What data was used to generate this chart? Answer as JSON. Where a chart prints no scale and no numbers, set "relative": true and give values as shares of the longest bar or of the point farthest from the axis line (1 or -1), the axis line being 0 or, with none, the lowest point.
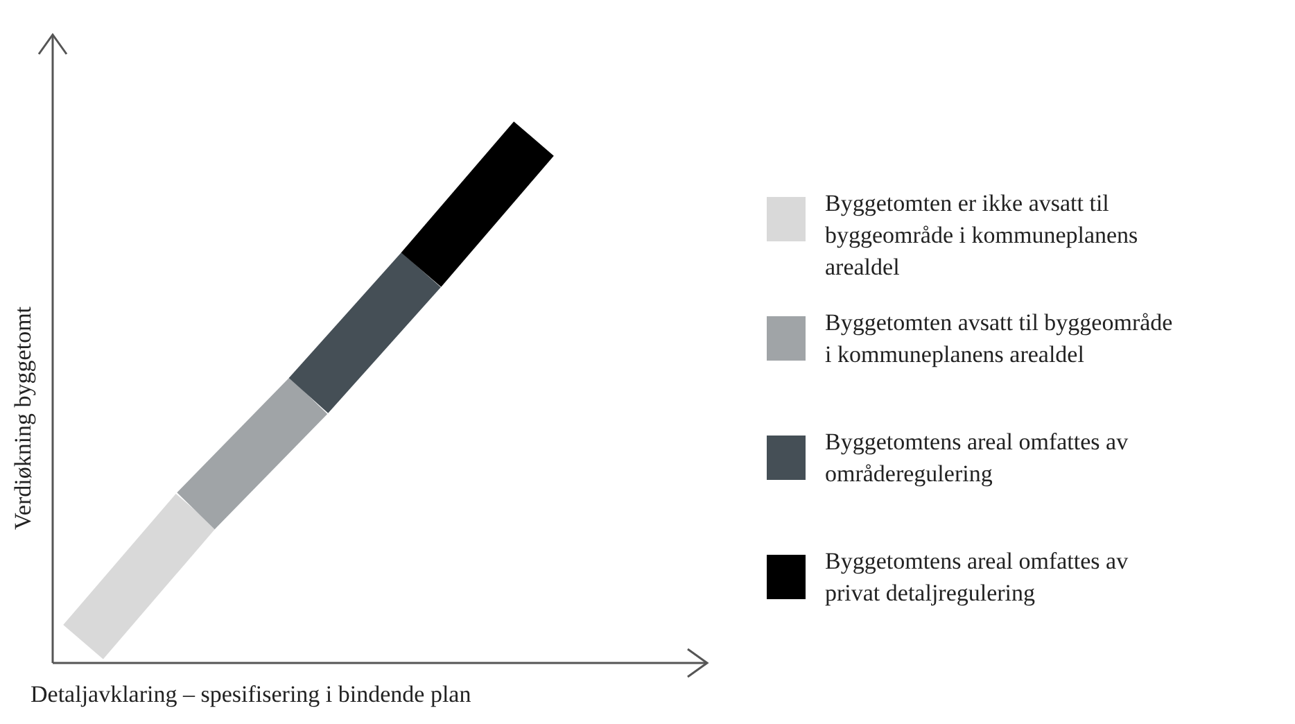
{
  "chart_data": {
    "type": "line",
    "relative": true,
    "xlabel": "Detaljavklaring – spesifisering i bindende plan",
    "ylabel": "Verdiøkning byggetomt",
    "categories": [
      null,
      null,
      null,
      null,
      null
    ],
    "legend": "right",
    "series": [
      {
        "name": "Byggetomten er ikke avsatt til byggeområde i kommuneplanens arealdel",
        "color": "#d9d9d9",
        "values": [
          0.04,
          0.29,
          null,
          null,
          null
        ]
      },
      {
        "name": "Byggetomten avsatt til byggeområde i kommuneplanens arealdel",
        "color": "#a0a4a7",
        "values": [
          null,
          0.29,
          0.51,
          null,
          null
        ]
      },
      {
        "name": "Byggetomtens areal omfattes av områderegulering",
        "color": "#454f56",
        "values": [
          null,
          null,
          0.51,
          0.75,
          null
        ]
      },
      {
        "name": "Byggetomtens areal omfattes av privat detaljregulering",
        "color": "#000000",
        "values": [
          null,
          null,
          null,
          0.75,
          1
        ]
      }
    ]
  }
}
